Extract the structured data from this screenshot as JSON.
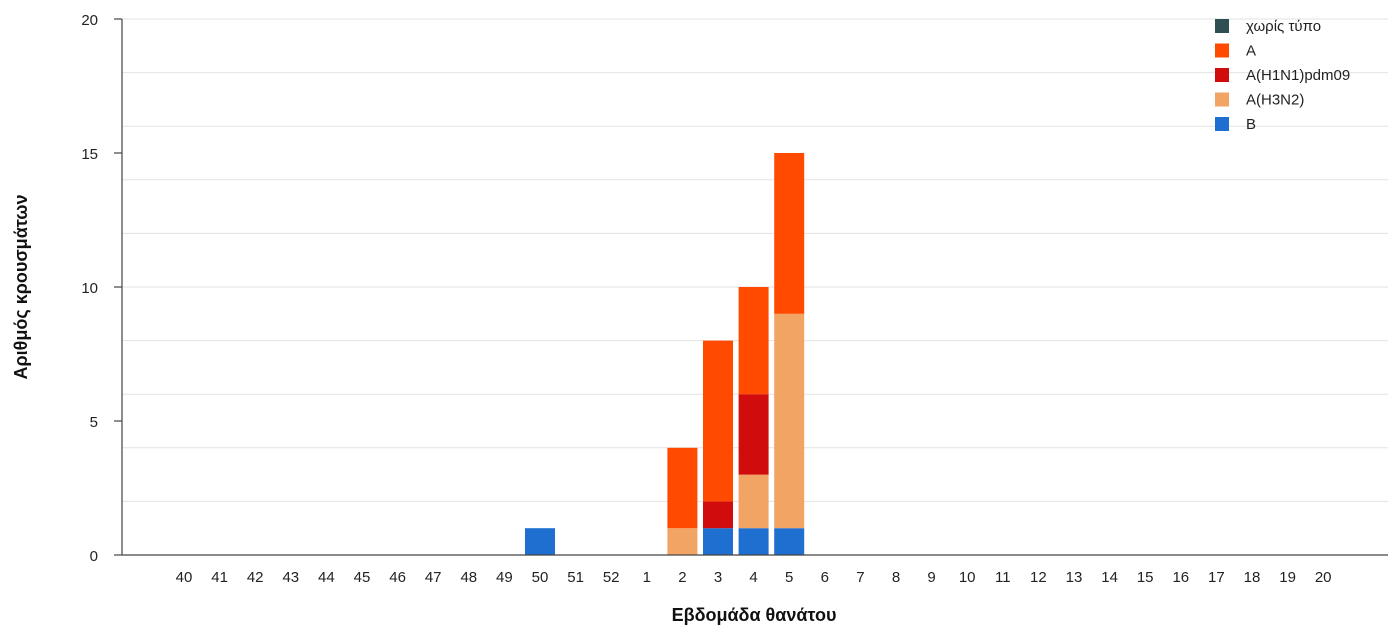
{
  "chart_data": {
    "type": "bar",
    "stacked": true,
    "xlabel": "Εβδομάδα θανάτου",
    "ylabel": "Αριθμός κρουσμάτων",
    "ylim": [
      0,
      20
    ],
    "yticks": [
      0,
      5,
      10,
      15,
      20
    ],
    "grid": true,
    "legend_position": "top-right",
    "categories": [
      "40",
      "41",
      "42",
      "43",
      "44",
      "45",
      "46",
      "47",
      "48",
      "49",
      "50",
      "51",
      "52",
      "1",
      "2",
      "3",
      "4",
      "5",
      "6",
      "7",
      "8",
      "9",
      "10",
      "11",
      "12",
      "13",
      "14",
      "15",
      "16",
      "17",
      "18",
      "19",
      "20"
    ],
    "series": [
      {
        "name": "B",
        "color": "#1e6fd0",
        "values": [
          0,
          0,
          0,
          0,
          0,
          0,
          0,
          0,
          0,
          0,
          1,
          0,
          0,
          0,
          0,
          1,
          1,
          1,
          0,
          0,
          0,
          0,
          0,
          0,
          0,
          0,
          0,
          0,
          0,
          0,
          0,
          0,
          0
        ]
      },
      {
        "name": "A(H3N2)",
        "color": "#f2a464",
        "values": [
          0,
          0,
          0,
          0,
          0,
          0,
          0,
          0,
          0,
          0,
          0,
          0,
          0,
          0,
          1,
          0,
          2,
          8,
          0,
          0,
          0,
          0,
          0,
          0,
          0,
          0,
          0,
          0,
          0,
          0,
          0,
          0,
          0
        ]
      },
      {
        "name": "A(H1N1)pdm09",
        "color": "#d00c0c",
        "values": [
          0,
          0,
          0,
          0,
          0,
          0,
          0,
          0,
          0,
          0,
          0,
          0,
          0,
          0,
          0,
          1,
          3,
          0,
          0,
          0,
          0,
          0,
          0,
          0,
          0,
          0,
          0,
          0,
          0,
          0,
          0,
          0,
          0
        ]
      },
      {
        "name": "A",
        "color": "#ff4a00",
        "values": [
          0,
          0,
          0,
          0,
          0,
          0,
          0,
          0,
          0,
          0,
          0,
          0,
          0,
          0,
          3,
          6,
          4,
          6,
          0,
          0,
          0,
          0,
          0,
          0,
          0,
          0,
          0,
          0,
          0,
          0,
          0,
          0,
          0
        ]
      },
      {
        "name": "χωρίς τύπο",
        "color": "#2f5052",
        "values": [
          0,
          0,
          0,
          0,
          0,
          0,
          0,
          0,
          0,
          0,
          0,
          0,
          0,
          0,
          0,
          0,
          0,
          0,
          0,
          0,
          0,
          0,
          0,
          0,
          0,
          0,
          0,
          0,
          0,
          0,
          0,
          0,
          0
        ]
      }
    ],
    "legend_order": [
      "χωρίς τύπο",
      "A",
      "A(H1N1)pdm09",
      "A(H3N2)",
      "B"
    ]
  }
}
